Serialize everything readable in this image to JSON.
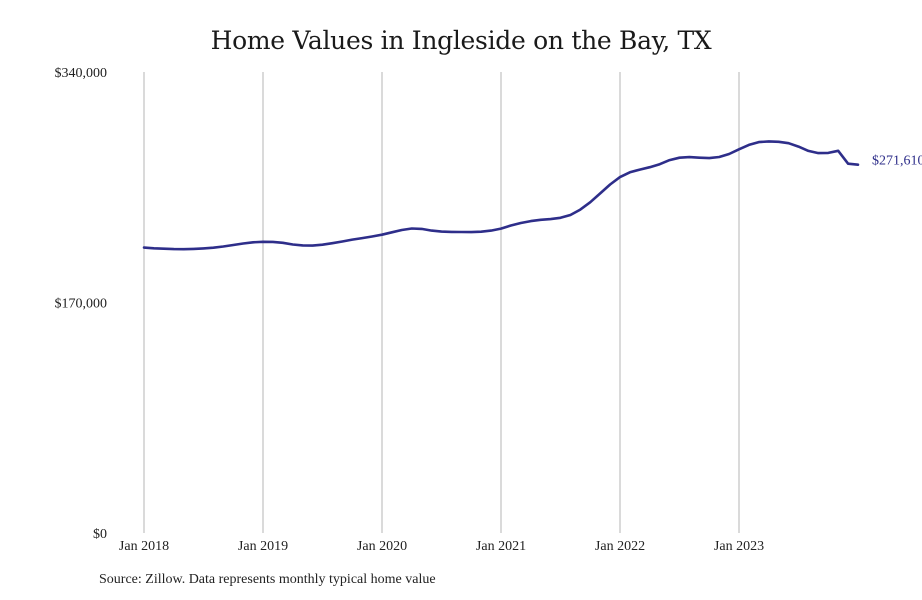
{
  "chart_data": {
    "type": "line",
    "title": "Home Values in Ingleside on the Bay, TX",
    "source": "Source: Zillow. Data represents monthly typical home value",
    "x_start": "2018-01",
    "x_ticks": [
      "Jan 2018",
      "Jan 2019",
      "Jan 2020",
      "Jan 2021",
      "Jan 2022",
      "Jan 2023"
    ],
    "y_ticks": [
      "$340,000",
      "$170,000",
      "$0"
    ],
    "ylim": [
      0,
      340000
    ],
    "line_color": "#2e2e8a",
    "end_label": "$271,610",
    "series": [
      {
        "values": [
          210500,
          210000,
          209700,
          209400,
          209300,
          209500,
          209900,
          210400,
          211300,
          212400,
          213500,
          214400,
          214800,
          214700,
          214000,
          212800,
          212100,
          212000,
          212600,
          213700,
          215000,
          216400,
          217500,
          218700,
          220000,
          221800,
          223500,
          224600,
          224300,
          223000,
          222300,
          222100,
          222000,
          221900,
          222200,
          223000,
          224500,
          226800,
          228600,
          230000,
          231000,
          231500,
          232500,
          234500,
          238500,
          244000,
          250500,
          257000,
          262500,
          266000,
          268000,
          269800,
          272000,
          275000,
          276800,
          277200,
          276800,
          276500,
          277300,
          279500,
          283000,
          286200,
          288300,
          288800,
          288500,
          287500,
          285000,
          281800,
          280200,
          280300,
          281900,
          272400,
          271610
        ]
      }
    ]
  }
}
